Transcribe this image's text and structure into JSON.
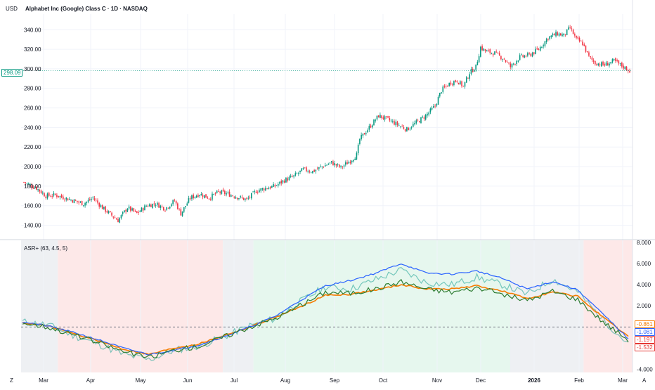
{
  "header": {
    "currency": "USD",
    "title": "Alphabet Inc (Google) Class C · 1D · NASDAQ"
  },
  "price_tag": "298.09",
  "indicator": {
    "label": "ASR+ (63, 4.5, 5)",
    "value_tags": [
      {
        "text": "-0.861",
        "color": "#f57c00"
      },
      {
        "text": "-1.081",
        "color": "#2962ff"
      },
      {
        "text": "-1.197",
        "color": "#e53935"
      },
      {
        "text": "-1.532",
        "color": "#e53935"
      }
    ]
  },
  "corner_left": "Z",
  "corner_right": "A",
  "colors": {
    "up": "#089981",
    "down": "#f23645",
    "grid": "#f0f3fa",
    "axis_text": "#131722",
    "bg_red": "#fde8e8",
    "bg_green": "#e6f7ee",
    "bg_gray": "#eef0f3"
  },
  "chart_data": [
    {
      "type": "candlestick",
      "title": "Alphabet Inc (Google) Class C · 1D · NASDAQ",
      "ylabel": "USD",
      "y_ticks": [
        "340.00",
        "320.00",
        "300.00",
        "280.00",
        "260.00",
        "240.00",
        "220.00",
        "200.00",
        "180.00",
        "160.00",
        "140.00"
      ],
      "ylim": [
        126,
        356
      ],
      "x_ticks": [
        "Mar",
        "Apr",
        "May",
        "Jun",
        "Jul",
        "Aug",
        "Sep",
        "Oct",
        "Nov",
        "Dec",
        "2026",
        "Feb",
        "Mar"
      ],
      "close_path": [
        [
          0,
          184
        ],
        [
          8,
          178
        ],
        [
          14,
          170
        ],
        [
          20,
          171
        ],
        [
          26,
          168
        ],
        [
          32,
          165
        ],
        [
          38,
          162
        ],
        [
          44,
          168
        ],
        [
          50,
          158
        ],
        [
          56,
          150
        ],
        [
          60,
          145
        ],
        [
          66,
          158
        ],
        [
          72,
          152
        ],
        [
          78,
          160
        ],
        [
          84,
          162
        ],
        [
          90,
          157
        ],
        [
          96,
          165
        ],
        [
          100,
          152
        ],
        [
          106,
          168
        ],
        [
          112,
          172
        ],
        [
          118,
          168
        ],
        [
          124,
          174
        ],
        [
          130,
          172
        ],
        [
          136,
          169
        ],
        [
          142,
          166
        ],
        [
          148,
          175
        ],
        [
          154,
          178
        ],
        [
          160,
          180
        ],
        [
          166,
          186
        ],
        [
          172,
          190
        ],
        [
          178,
          197
        ],
        [
          184,
          195
        ],
        [
          190,
          200
        ],
        [
          196,
          204
        ],
        [
          202,
          199
        ],
        [
          208,
          206
        ],
        [
          212,
          212
        ],
        [
          214,
          228
        ],
        [
          220,
          240
        ],
        [
          226,
          252
        ],
        [
          232,
          248
        ],
        [
          238,
          243
        ],
        [
          244,
          238
        ],
        [
          250,
          245
        ],
        [
          256,
          252
        ],
        [
          262,
          262
        ],
        [
          266,
          278
        ],
        [
          272,
          286
        ],
        [
          276,
          288
        ],
        [
          280,
          282
        ],
        [
          284,
          296
        ],
        [
          288,
          302
        ],
        [
          291,
          322
        ],
        [
          294,
          318
        ],
        [
          300,
          316
        ],
        [
          306,
          310
        ],
        [
          310,
          302
        ],
        [
          316,
          312
        ],
        [
          322,
          314
        ],
        [
          328,
          320
        ],
        [
          334,
          332
        ],
        [
          340,
          336
        ],
        [
          344,
          334
        ],
        [
          348,
          342
        ],
        [
          352,
          330
        ],
        [
          356,
          326
        ],
        [
          360,
          312
        ],
        [
          364,
          306
        ],
        [
          370,
          304
        ],
        [
          376,
          308
        ],
        [
          382,
          302
        ],
        [
          386,
          298
        ]
      ],
      "last_price": 298.09
    },
    {
      "type": "line",
      "title": "ASR+ (63, 4.5, 5)",
      "y_ticks": [
        "8.000",
        "6.000",
        "4.000",
        "2.000",
        "-4.000"
      ],
      "ylim": [
        -4.3,
        8.2
      ],
      "baseline": 0,
      "series": [
        {
          "color": "#26a69a",
          "values": [
            0.5,
            0.2,
            -0.8,
            -1.6,
            -2.6,
            -3.1,
            -2.2,
            -1.8,
            -0.9,
            0.1,
            0.8,
            2.4,
            3.8,
            3.6,
            4.5,
            5.4,
            4.2,
            4.0,
            4.7,
            4.0,
            3.1,
            4.5,
            3.3,
            0.7,
            -1.6
          ]
        },
        {
          "color": "#f57c00",
          "values": [
            0.4,
            0.1,
            -0.6,
            -1.3,
            -2.1,
            -2.6,
            -2.0,
            -1.6,
            -0.8,
            0.0,
            0.9,
            1.9,
            3.0,
            3.1,
            3.5,
            4.0,
            3.6,
            3.6,
            3.9,
            3.4,
            2.7,
            3.3,
            2.9,
            0.9,
            -0.9
          ]
        },
        {
          "color": "#2962ff",
          "values": [
            0.5,
            0.1,
            -0.5,
            -1.2,
            -2.0,
            -2.6,
            -2.2,
            -1.7,
            -0.9,
            0.0,
            1.0,
            2.5,
            3.9,
            4.4,
            5.1,
            6.0,
            5.1,
            5.0,
            5.3,
            4.6,
            3.6,
            4.3,
            3.5,
            1.2,
            -1.1
          ]
        },
        {
          "color": "#2e7d32",
          "values": [
            0.4,
            0.0,
            -0.7,
            -1.5,
            -2.3,
            -2.9,
            -2.2,
            -1.8,
            -0.9,
            0.0,
            0.8,
            2.0,
            3.3,
            3.2,
            3.6,
            4.3,
            3.6,
            3.3,
            3.7,
            3.1,
            2.5,
            3.4,
            2.6,
            0.5,
            -1.2
          ]
        }
      ]
    }
  ]
}
